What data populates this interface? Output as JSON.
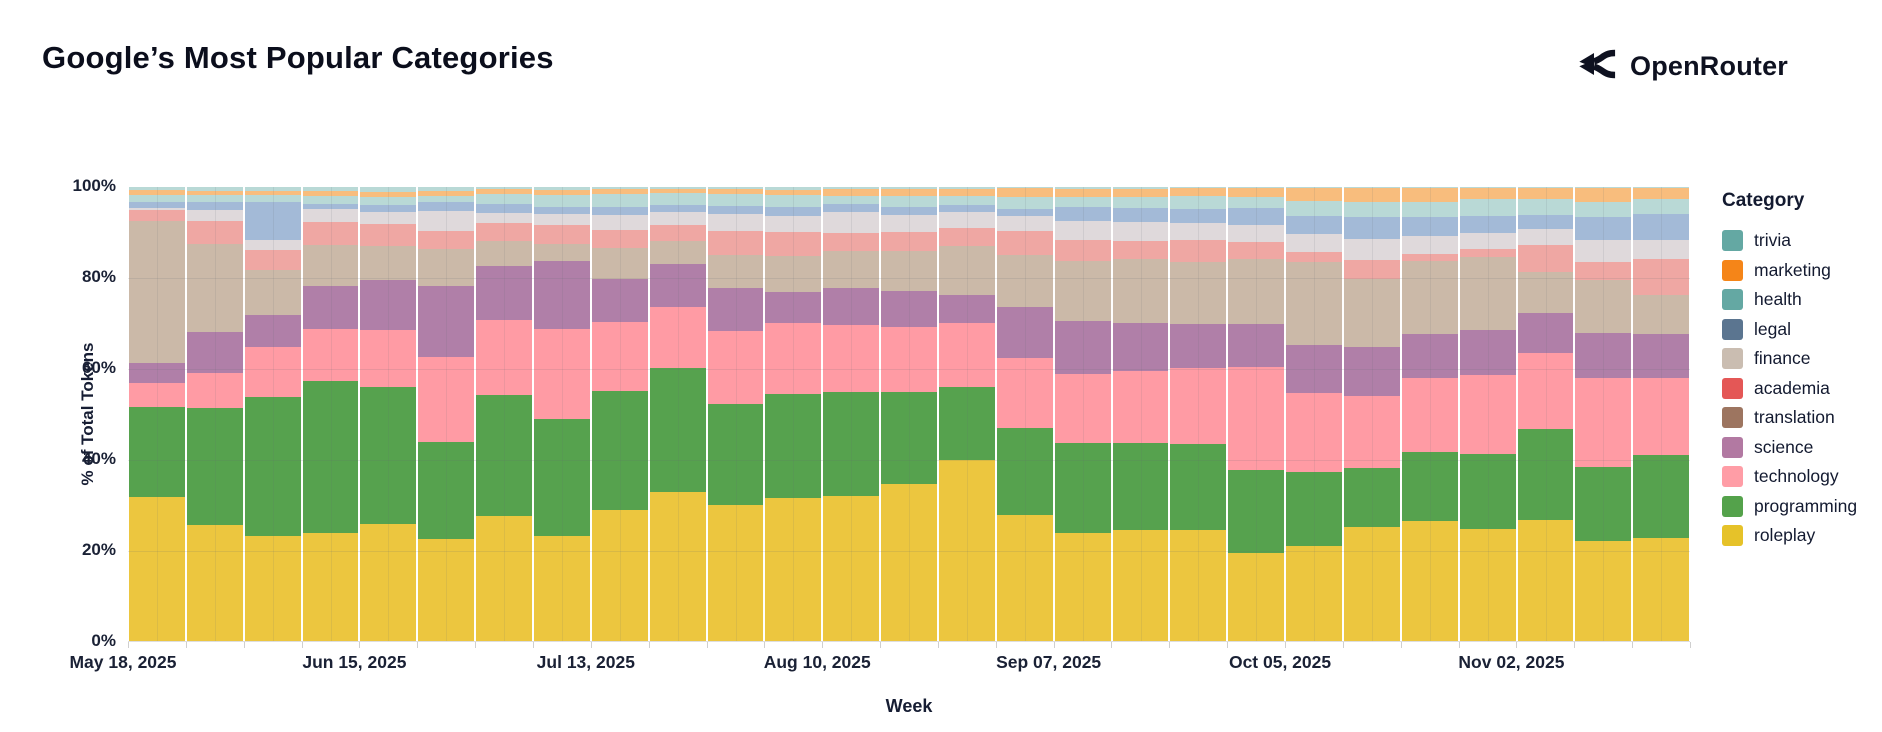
{
  "page": {
    "title": "Google’s Most Popular Categories",
    "brand": "OpenRouter"
  },
  "chart_data": {
    "type": "bar",
    "variant": "stacked-100-percent",
    "title": "Google’s Most Popular Categories",
    "xlabel": "Week",
    "ylabel": "% of Total Tokens",
    "ylim": [
      0,
      100
    ],
    "grid": true,
    "legend_position": "right",
    "legend_title": "Category",
    "y_tick_labels": [
      "0%",
      "20%",
      "40%",
      "60%",
      "80%",
      "100%"
    ],
    "x_tick_indices": [
      0,
      4,
      8,
      12,
      16,
      20,
      24
    ],
    "x_tick_labels": [
      "May 18, 2025",
      "Jun 15, 2025",
      "Jul 13, 2025",
      "Aug 10, 2025",
      "Sep 07, 2025",
      "Oct 05, 2025",
      "Nov 02, 2025"
    ],
    "categories": [
      {
        "name": "trivia",
        "legend_color": "#64a8a3",
        "bar_color": "#b9d9d6",
        "pattern": "light"
      },
      {
        "name": "marketing",
        "legend_color": "#f58518",
        "bar_color": "#f8bd7d",
        "pattern": null
      },
      {
        "name": "health",
        "legend_color": "#64a8a3",
        "bar_color": "#b9d9d6",
        "pattern": null
      },
      {
        "name": "legal",
        "legend_color": "#5b7590",
        "bar_color": "#a3bad7",
        "pattern": "light"
      },
      {
        "name": "finance",
        "legend_color": "#cabdb1",
        "bar_color": "#dfd9db",
        "pattern": "dark"
      },
      {
        "name": "academia",
        "legend_color": "#e45756",
        "bar_color": "#efa7a3",
        "pattern": null
      },
      {
        "name": "translation",
        "legend_color": "#9d7560",
        "bar_color": "#cbb9a8",
        "pattern": null
      },
      {
        "name": "science",
        "legend_color": "#b279a2",
        "bar_color": "#b07fa8",
        "pattern": null
      },
      {
        "name": "technology",
        "legend_color": "#ff9da6",
        "bar_color": "#ff9ba4",
        "pattern": null
      },
      {
        "name": "programming",
        "legend_color": "#54a24b",
        "bar_color": "#56a24e",
        "pattern": null
      },
      {
        "name": "roleplay",
        "legend_color": "#e6c229",
        "bar_color": "#ecc63f",
        "pattern": null
      }
    ],
    "weeks": [
      "May 18, 2025",
      "May 25, 2025",
      "Jun 01, 2025",
      "Jun 08, 2025",
      "Jun 15, 2025",
      "Jun 22, 2025",
      "Jun 29, 2025",
      "Jul 06, 2025",
      "Jul 13, 2025",
      "Jul 20, 2025",
      "Jul 27, 2025",
      "Aug 03, 2025",
      "Aug 10, 2025",
      "Aug 17, 2025",
      "Aug 24, 2025",
      "Aug 31, 2025",
      "Sep 07, 2025",
      "Sep 14, 2025",
      "Sep 21, 2025",
      "Sep 28, 2025",
      "Oct 05, 2025",
      "Oct 12, 2025",
      "Oct 19, 2025",
      "Oct 26, 2025",
      "Nov 02, 2025",
      "Nov 09, 2025",
      "Nov 16, 2025"
    ],
    "series": [
      {
        "name": "roleplay",
        "values": [
          32.0,
          25.7,
          23.3,
          24.0,
          26.0,
          22.6,
          27.8,
          23.3,
          29.0,
          32.8,
          30.0,
          31.7,
          32.2,
          34.8,
          40.3,
          27.8,
          23.8,
          24.6,
          24.6,
          19.5,
          21.2,
          25.4,
          26.7,
          24.8,
          26.8,
          22.2,
          23.0
        ]
      },
      {
        "name": "programming",
        "values": [
          19.8,
          25.8,
          30.5,
          33.5,
          30.0,
          21.6,
          26.5,
          25.8,
          26.3,
          27.3,
          22.3,
          23.0,
          23.0,
          20.1,
          16.2,
          19.1,
          19.8,
          19.2,
          19.0,
          18.3,
          16.2,
          12.9,
          15.1,
          16.7,
          20.0,
          16.2,
          18.2
        ]
      },
      {
        "name": "technology",
        "values": [
          5.2,
          7.7,
          11.0,
          11.5,
          12.7,
          18.7,
          16.5,
          19.8,
          15.2,
          13.4,
          16.0,
          15.7,
          15.0,
          14.2,
          14.2,
          15.4,
          15.2,
          15.7,
          16.7,
          22.6,
          17.4,
          15.9,
          16.3,
          17.2,
          16.6,
          19.7,
          17.0
        ]
      },
      {
        "name": "science",
        "values": [
          4.6,
          9.0,
          7.0,
          9.4,
          10.9,
          15.6,
          11.9,
          15.2,
          9.4,
          9.4,
          9.4,
          6.7,
          8.0,
          8.0,
          6.0,
          11.2,
          11.6,
          10.6,
          9.7,
          9.4,
          10.5,
          10.8,
          9.7,
          10.0,
          8.8,
          9.9,
          9.6
        ]
      },
      {
        "name": "translation",
        "values": [
          31.2,
          19.4,
          9.8,
          9.1,
          7.6,
          8.2,
          5.4,
          3.7,
          6.8,
          5.0,
          7.2,
          8.1,
          8.2,
          8.7,
          10.9,
          11.4,
          13.1,
          14.0,
          13.6,
          14.3,
          18.3,
          15.0,
          16.1,
          16.2,
          9.1,
          11.6,
          8.8
        ]
      },
      {
        "name": "academia",
        "values": [
          2.4,
          5.0,
          4.5,
          4.9,
          4.7,
          3.9,
          4.0,
          4.1,
          4.0,
          3.5,
          5.3,
          5.1,
          4.0,
          4.3,
          4.0,
          5.4,
          4.7,
          3.9,
          4.8,
          3.8,
          2.2,
          4.2,
          1.7,
          1.6,
          5.8,
          4.1,
          7.8
        ]
      },
      {
        "name": "finance",
        "values": [
          0.4,
          2.5,
          2.0,
          3.0,
          2.8,
          4.5,
          2.2,
          2.4,
          3.4,
          2.8,
          3.9,
          3.7,
          4.6,
          3.7,
          3.5,
          3.2,
          4.0,
          4.2,
          3.7,
          3.7,
          4.0,
          4.6,
          4.0,
          3.6,
          3.7,
          4.7,
          4.2
        ]
      },
      {
        "name": "legal",
        "values": [
          1.4,
          1.7,
          8.5,
          1.1,
          1.5,
          1.9,
          2.0,
          1.7,
          1.6,
          1.5,
          1.7,
          1.8,
          1.9,
          1.7,
          1.6,
          1.7,
          3.2,
          3.2,
          3.2,
          3.8,
          3.9,
          5.0,
          4.0,
          3.7,
          3.0,
          5.2,
          5.8
        ]
      },
      {
        "name": "health",
        "values": [
          1.6,
          1.5,
          1.5,
          1.7,
          1.7,
          1.4,
          2.1,
          2.5,
          3.0,
          2.6,
          2.6,
          2.7,
          1.8,
          2.4,
          2.1,
          2.5,
          2.1,
          2.4,
          2.8,
          2.4,
          3.4,
          3.2,
          3.5,
          3.7,
          3.4,
          3.3,
          3.2
        ]
      },
      {
        "name": "marketing",
        "values": [
          1.1,
          0.9,
          0.8,
          1.1,
          1.2,
          1.0,
          1.1,
          1.1,
          1.0,
          1.0,
          1.0,
          1.2,
          1.5,
          1.5,
          1.5,
          1.9,
          1.8,
          1.7,
          1.7,
          2.0,
          2.8,
          3.1,
          3.0,
          2.5,
          2.4,
          3.0,
          2.5
        ]
      },
      {
        "name": "trivia",
        "values": [
          0.6,
          0.9,
          0.9,
          0.9,
          1.0,
          0.9,
          0.5,
          0.7,
          0.5,
          0.4,
          0.5,
          0.6,
          0.4,
          0.5,
          0.4,
          0.3,
          0.4,
          0.4,
          0.3,
          0.2,
          0.2,
          0.2,
          0.2,
          0.2,
          0.3,
          0.2,
          0.2
        ]
      }
    ]
  }
}
